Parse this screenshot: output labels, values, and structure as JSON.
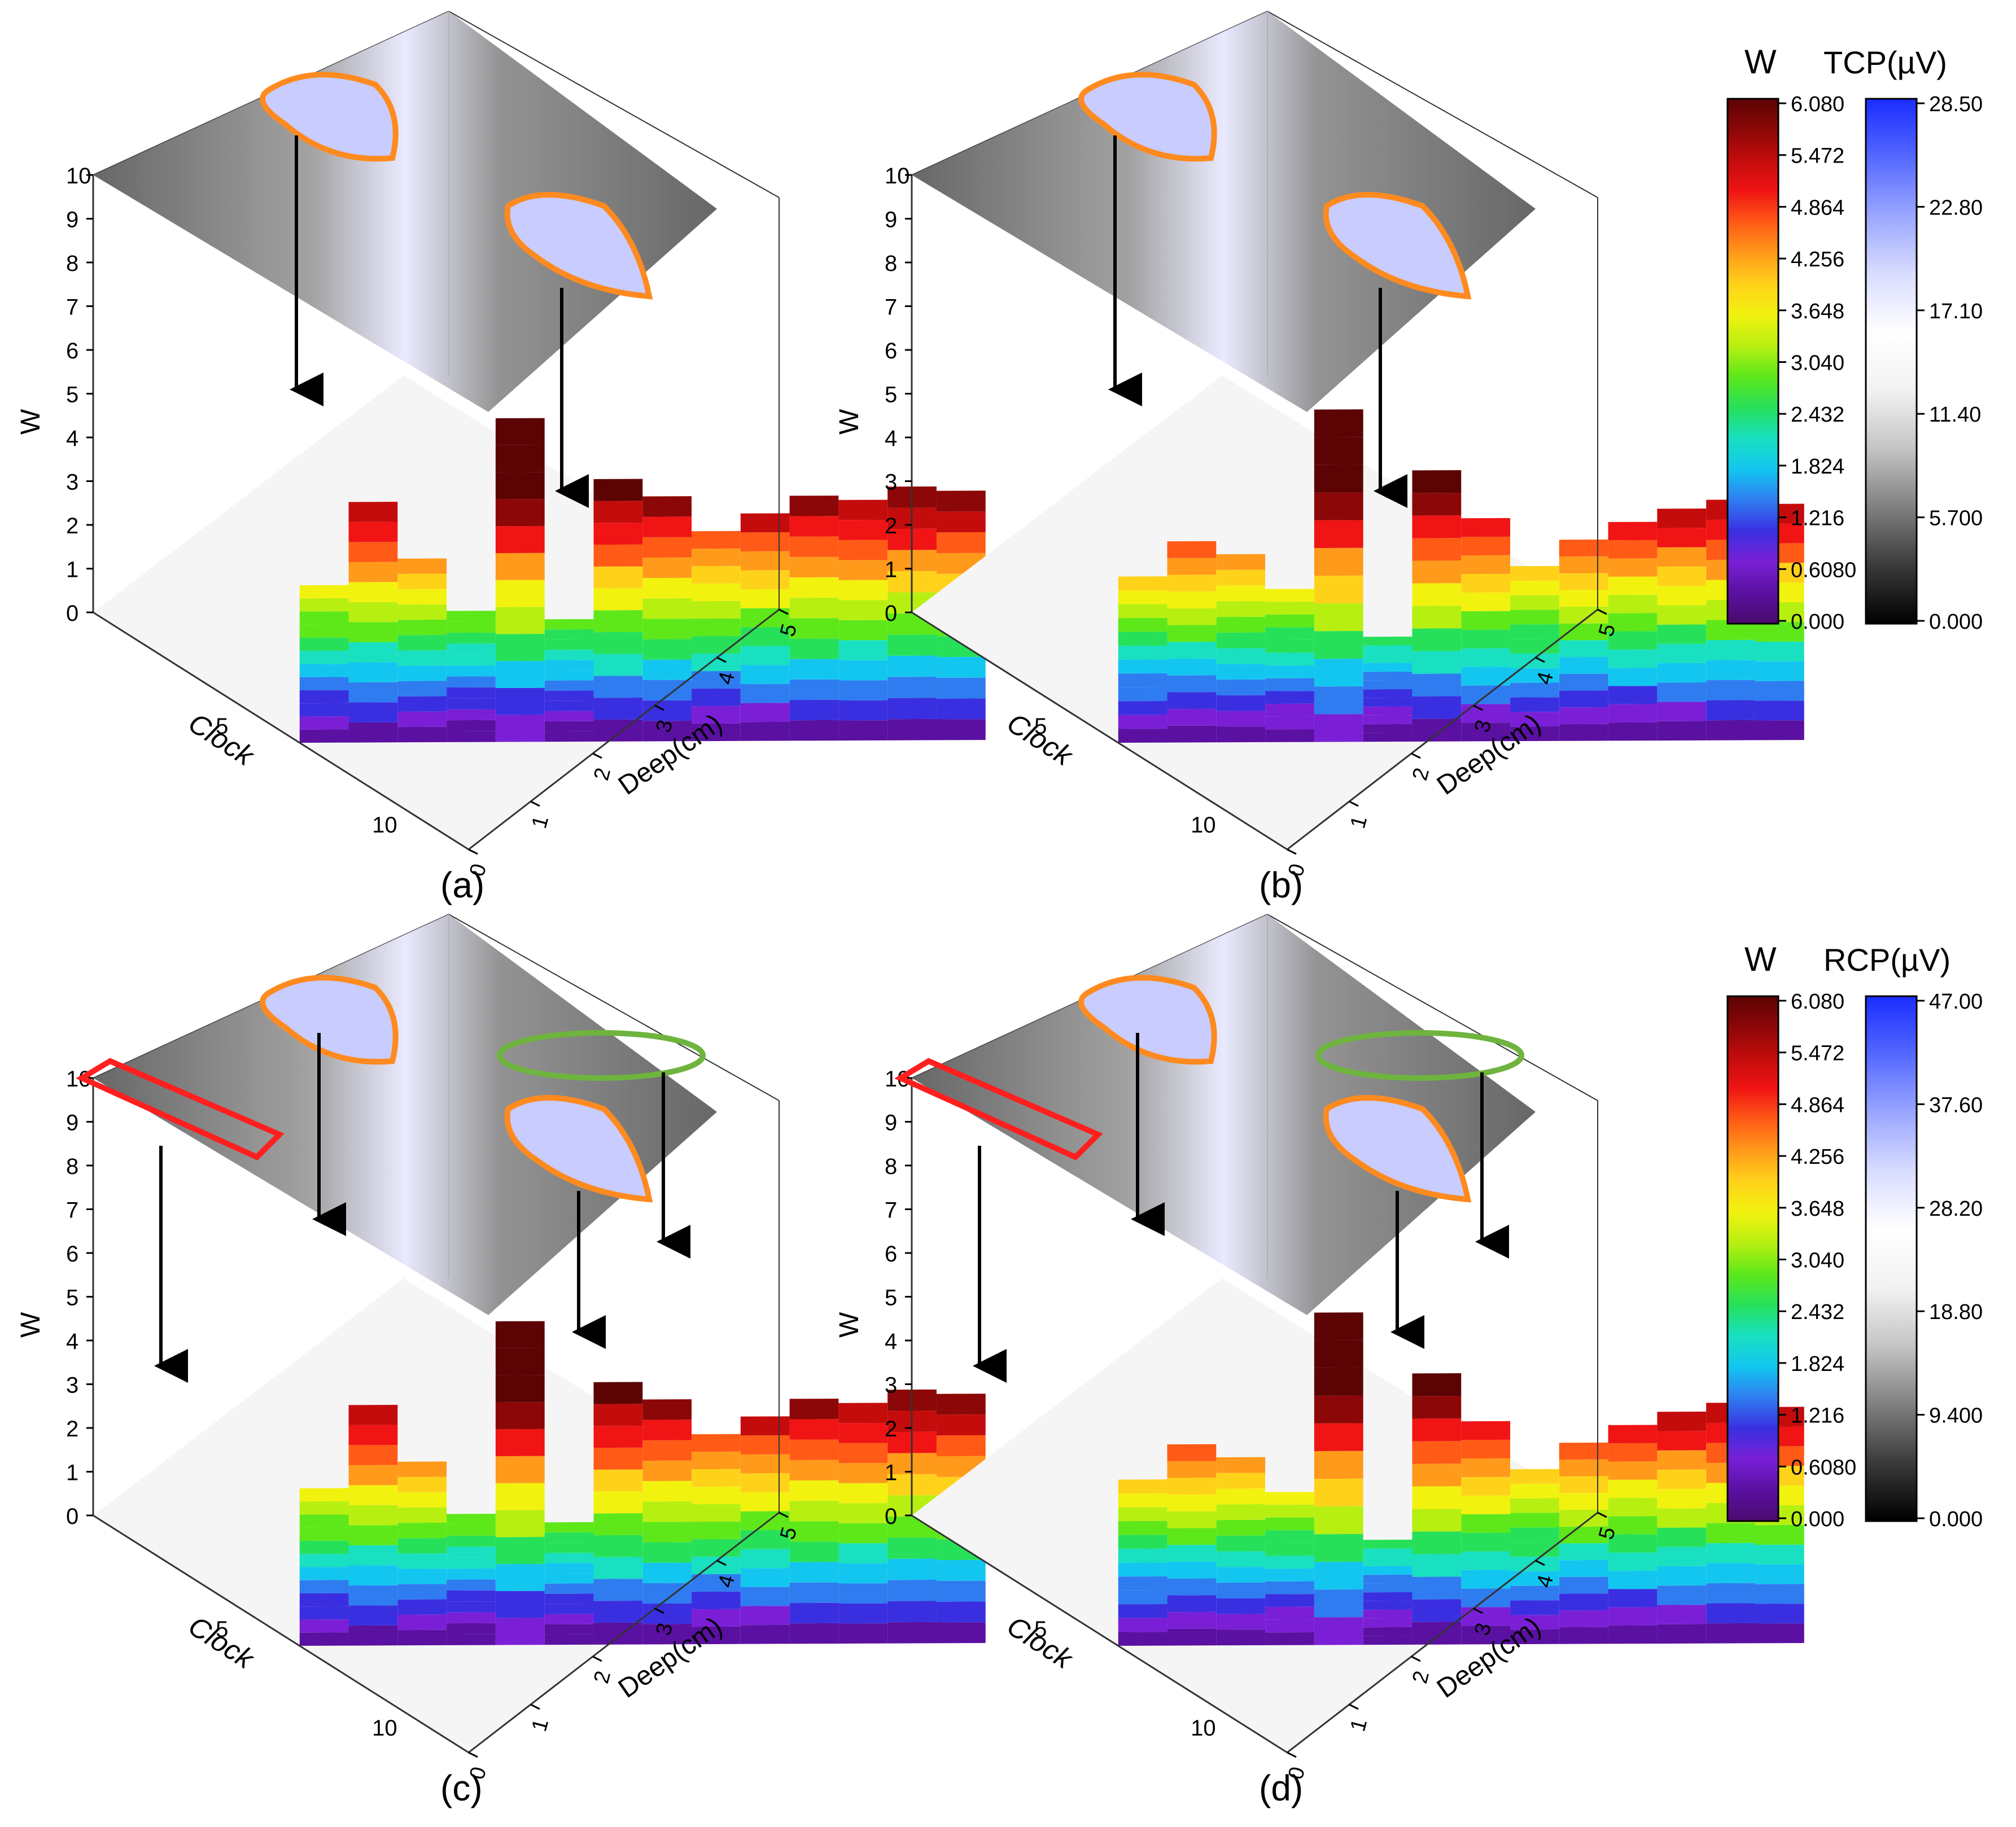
{
  "colors": {
    "w_scale": [
      "#4b0b6e",
      "#5a10a0",
      "#7a1fd6",
      "#3a2fe0",
      "#2f7cf0",
      "#13c6f0",
      "#18e0c0",
      "#27e05a",
      "#5ee81a",
      "#b7ef11",
      "#f2f20f",
      "#ffd21a",
      "#ff9a1a",
      "#ff5a16",
      "#f01414",
      "#c40c0c",
      "#8c0707",
      "#5c0303"
    ],
    "tcp_scale": [
      "#000000",
      "#3a3a3a",
      "#808080",
      "#c4c4c4",
      "#f2f2f2",
      "#ffffff",
      "#d8dcff",
      "#9aa6ff",
      "#5468ff",
      "#1b2cff"
    ],
    "top_plane": "#6c6c6c",
    "orange_outline": "#ff8a1f",
    "green_outline": "#6eb43e",
    "red_outline": "#ff1f1f",
    "arrow": "#000000"
  },
  "legend_tcp": {
    "w_title": "W",
    "cp_title": "TCP(µV)",
    "w_ticks": [
      "6.080",
      "5.472",
      "4.864",
      "4.256",
      "3.648",
      "3.040",
      "2.432",
      "1.824",
      "1.216",
      "0.6080",
      "0.000"
    ],
    "cp_ticks": [
      "28.50",
      "22.80",
      "17.10",
      "11.40",
      "5.700",
      "0.000"
    ]
  },
  "legend_rcp": {
    "w_title": "W",
    "cp_title": "RCP(µV)",
    "w_ticks": [
      "6.080",
      "5.472",
      "4.864",
      "4.256",
      "3.648",
      "3.040",
      "2.432",
      "1.824",
      "1.216",
      "0.6080",
      "0.000"
    ],
    "cp_ticks": [
      "47.00",
      "37.60",
      "28.20",
      "18.80",
      "9.400",
      "0.000"
    ]
  },
  "panels": [
    {
      "label": "(a)",
      "z_axis_label": "W",
      "clock_label": "Clock",
      "deep_label": "Deep(cm)"
    },
    {
      "label": "(b)",
      "z_axis_label": "W",
      "clock_label": "Clock",
      "deep_label": "Deep(cm)"
    },
    {
      "label": "(c)",
      "z_axis_label": "W",
      "clock_label": "Clock",
      "deep_label": "Deep(cm)"
    },
    {
      "label": "(d)",
      "z_axis_label": "W",
      "clock_label": "Clock",
      "deep_label": "Deep(cm)"
    }
  ],
  "chart_data": {
    "type": "3d-surface with projected contour plane",
    "axes": {
      "z": {
        "label": "W",
        "ticks": [
          "0",
          "1",
          "2",
          "3",
          "4",
          "5",
          "6",
          "7",
          "8",
          "9",
          "10"
        ],
        "range": [
          0,
          10
        ]
      },
      "clock": {
        "label": "Clock",
        "ticks": [
          "5",
          "10"
        ],
        "range": [
          0,
          12
        ]
      },
      "deep": {
        "label": "Deep(cm)",
        "ticks": [
          "0",
          "1",
          "2",
          "3",
          "4",
          "5"
        ],
        "range": [
          0,
          5
        ]
      }
    },
    "w_colorbar": {
      "range": [
        0,
        6.08
      ]
    },
    "tcp_colorbar": {
      "range": [
        0,
        28.5
      ]
    },
    "rcp_colorbar": {
      "range": [
        0,
        47.0
      ]
    }
  }
}
